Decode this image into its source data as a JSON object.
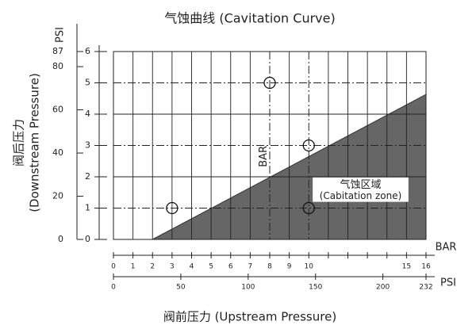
{
  "chart_data": {
    "type": "area",
    "title": "气蚀曲线 (Cavitation Curve)",
    "xlabel": "阀前压力 (Upstream Pressure)",
    "ylabel": [
      "阀后压力",
      "(Downstream Pressure)"
    ],
    "x_unit": "BAR",
    "x2_unit": "PSI",
    "y2_unit": "PSI",
    "plot_annotation": "BAR",
    "zone_label": [
      "气蚀区域",
      "(Cabitation zone)"
    ],
    "xlim": [
      0,
      16
    ],
    "xticks": [
      0,
      1,
      2,
      3,
      4,
      5,
      6,
      7,
      8,
      9,
      10,
      15,
      16
    ],
    "minor_xticks": [
      11,
      12,
      13,
      14
    ],
    "x2lim": [
      0,
      232
    ],
    "x2ticks": [
      0,
      50,
      100,
      150,
      200,
      232
    ],
    "ylim": [
      0,
      6
    ],
    "yticks": [
      0,
      1,
      2,
      3,
      4,
      5,
      6
    ],
    "y2lim": [
      0,
      87
    ],
    "y2ticks": [
      0,
      20,
      40,
      60,
      80,
      87
    ],
    "reference_x": [
      8,
      10
    ],
    "reference_y": [
      1,
      3,
      5
    ],
    "cavitation_boundary": {
      "x": [
        2,
        16
      ],
      "y": [
        0,
        4.63
      ],
      "color": "#666666"
    },
    "points": {
      "x": [
        3,
        8,
        10,
        10
      ],
      "y": [
        1,
        5,
        3,
        1
      ]
    }
  }
}
